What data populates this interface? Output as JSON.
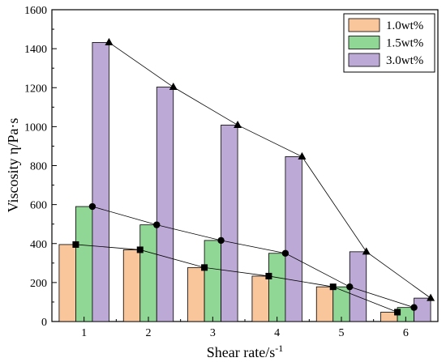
{
  "chart_data": {
    "type": "bar",
    "xlabel": "Shear rate/s",
    "xlabel_sup": "-1",
    "ylabel": "Viscosity η/Pa·s",
    "ylim": [
      0,
      1600
    ],
    "yticks": [
      0,
      200,
      400,
      600,
      800,
      1000,
      1200,
      1400,
      1600
    ],
    "categories": [
      "1",
      "2",
      "3",
      "4",
      "5",
      "6"
    ],
    "grid": false,
    "legend_position": "top-right",
    "series": [
      {
        "name": "1.0wt%",
        "color": "#f9c59b",
        "marker": "square",
        "values": [
          395,
          368,
          277,
          233,
          178,
          48
        ]
      },
      {
        "name": "1.5wt%",
        "color": "#90d795",
        "marker": "circle",
        "values": [
          590,
          496,
          416,
          350,
          178,
          72
        ]
      },
      {
        "name": "3.0wt%",
        "color": "#bca9d6",
        "marker": "triangle",
        "values": [
          1432,
          1203,
          1008,
          846,
          358,
          120
        ]
      }
    ]
  }
}
